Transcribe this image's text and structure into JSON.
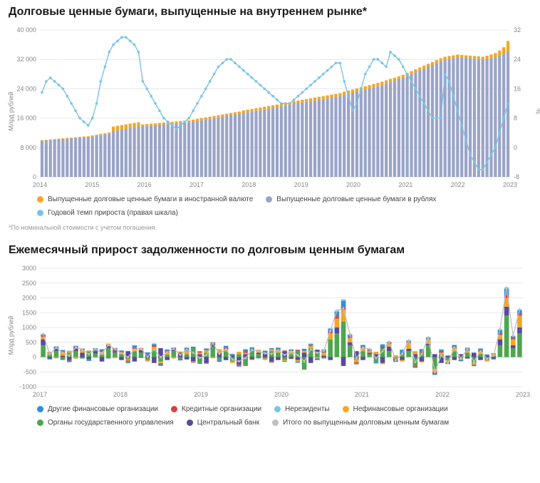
{
  "chart1": {
    "title": "Долговые ценные бумаги, выпущенные на внутреннем рынке*",
    "ylabel_left": "Млрд рублей",
    "ylabel_right": "%",
    "footnote": "*По номинальной стоимости с учетом погашения.",
    "y1_ticks": [
      0,
      8000,
      16000,
      24000,
      32000,
      40000
    ],
    "y2_ticks": [
      -8,
      0,
      8,
      16,
      24,
      32
    ],
    "y1_lim": [
      0,
      40000
    ],
    "y2_lim": [
      -8,
      32
    ],
    "x_years": [
      "2014",
      "2015",
      "2016",
      "2017",
      "2018",
      "2019",
      "2020",
      "2021",
      "2022",
      "2023"
    ],
    "colors": {
      "rub": "#9aa4c8",
      "fx": "#f5a623",
      "line": "#7bc3e6",
      "grid": "#e8e8e8",
      "bg": "#ffffff"
    },
    "legend": [
      {
        "label": "Выпущенные долговые ценные бумаги в иностранной валюте",
        "color": "#f5a623"
      },
      {
        "label": "Выпущенные долговые ценные бумаги в рублях",
        "color": "#9aa4c8"
      },
      {
        "label": "Годовой темп прироста (правая шкала)",
        "color": "#7bc3e6"
      }
    ],
    "bars_rub": [
      9800,
      9900,
      10000,
      10100,
      10200,
      10300,
      10400,
      10500,
      10600,
      10700,
      10800,
      10900,
      11000,
      11200,
      11400,
      11600,
      11800,
      12500,
      12700,
      12900,
      13100,
      13300,
      13500,
      13700,
      13800,
      13900,
      14000,
      14100,
      14200,
      14300,
      14400,
      14500,
      14600,
      14700,
      14800,
      14900,
      15000,
      15200,
      15400,
      15600,
      15800,
      16000,
      16200,
      16400,
      16600,
      16800,
      17000,
      17200,
      17400,
      17600,
      17800,
      18000,
      18200,
      18400,
      18600,
      18800,
      19000,
      19200,
      19400,
      19600,
      19800,
      20000,
      20200,
      20400,
      20600,
      20800,
      21000,
      21200,
      21400,
      21600,
      21800,
      22000,
      22300,
      22600,
      22900,
      23200,
      23500,
      23800,
      24100,
      24400,
      24700,
      25000,
      25400,
      25800,
      26200,
      26600,
      27000,
      27500,
      28000,
      28500,
      29000,
      29500,
      30000,
      30500,
      31000,
      31500,
      32000,
      32200,
      32400,
      32600,
      32500,
      32400,
      32300,
      32200,
      32100,
      32000,
      32100,
      32300,
      32500,
      33000,
      33500,
      34000
    ],
    "bars_fx": [
      200,
      200,
      200,
      200,
      200,
      200,
      200,
      200,
      200,
      200,
      200,
      200,
      300,
      300,
      300,
      300,
      300,
      1200,
      1200,
      1200,
      1200,
      1200,
      1200,
      1200,
      500,
      500,
      500,
      500,
      500,
      500,
      500,
      500,
      500,
      500,
      500,
      500,
      600,
      600,
      600,
      600,
      600,
      600,
      600,
      600,
      600,
      600,
      600,
      600,
      700,
      700,
      700,
      700,
      700,
      700,
      700,
      700,
      700,
      700,
      700,
      700,
      800,
      800,
      800,
      800,
      800,
      800,
      800,
      800,
      800,
      800,
      800,
      800,
      900,
      900,
      900,
      900,
      900,
      900,
      900,
      900,
      900,
      900,
      900,
      900,
      800,
      800,
      800,
      800,
      800,
      800,
      800,
      800,
      800,
      800,
      800,
      800,
      700,
      700,
      700,
      700,
      700,
      700,
      700,
      700,
      700,
      700,
      900,
      1000,
      1200,
      1400,
      1800,
      3000
    ],
    "line_growth": [
      15,
      18,
      19,
      18,
      17,
      16,
      14,
      12,
      10,
      8,
      7,
      6,
      8,
      12,
      18,
      22,
      26,
      28,
      29,
      30,
      30,
      29,
      28,
      26,
      18,
      16,
      14,
      12,
      10,
      8,
      7,
      6,
      5,
      6,
      7,
      8,
      10,
      12,
      14,
      16,
      18,
      20,
      22,
      23,
      24,
      24,
      23,
      22,
      21,
      20,
      19,
      18,
      17,
      16,
      15,
      14,
      13,
      12,
      12,
      12,
      13,
      14,
      15,
      16,
      17,
      18,
      19,
      20,
      21,
      22,
      23,
      23,
      18,
      14,
      10,
      12,
      16,
      20,
      22,
      24,
      24,
      23,
      22,
      26,
      25,
      24,
      22,
      20,
      18,
      16,
      14,
      12,
      10,
      8,
      8,
      8,
      20,
      18,
      14,
      10,
      6,
      2,
      -2,
      -4,
      -6,
      -6,
      -4,
      -2,
      0,
      4,
      8,
      12
    ]
  },
  "chart2": {
    "title": "Ежемесячный прирост задолженности по долговым ценным бумагам",
    "ylabel_left": "Млрд рублей",
    "y_ticks": [
      -1000,
      -500,
      0,
      500,
      1000,
      1500,
      2000,
      2500,
      3000
    ],
    "y_lim": [
      -1000,
      3000
    ],
    "x_years": [
      "2017",
      "2018",
      "2019",
      "2020",
      "2021",
      "2022",
      "2023"
    ],
    "colors": {
      "other_fin": "#2e8fd8",
      "credit": "#d94141",
      "nonres": "#7bc3e6",
      "nonfin": "#f5a623",
      "gov": "#4ea64e",
      "cb": "#5a4a9c",
      "total_line": "#bfbfbf",
      "grid": "#e8e8e8"
    },
    "legend": [
      {
        "label": "Другие финансовые организации",
        "color": "#2e8fd8"
      },
      {
        "label": "Кредитные организации",
        "color": "#d94141"
      },
      {
        "label": "Нерезиденты",
        "color": "#7bc3e6"
      },
      {
        "label": "Нефинансовые организации",
        "color": "#f5a623"
      },
      {
        "label": "Органы государственного управления",
        "color": "#4ea64e"
      },
      {
        "label": "Центральный банк",
        "color": "#5a4a9c"
      },
      {
        "label": "Итого по выпущенным долговым ценным бумагам",
        "color": "#bfbfbf"
      }
    ],
    "series": {
      "gov": [
        400,
        100,
        200,
        -100,
        150,
        200,
        -50,
        180,
        120,
        80,
        300,
        150,
        100,
        -80,
        200,
        150,
        -100,
        250,
        -150,
        80,
        200,
        -50,
        100,
        300,
        -200,
        150,
        350,
        -100,
        200,
        -150,
        100,
        -300,
        250,
        100,
        -50,
        200,
        150,
        -100,
        100,
        200,
        -400,
        300,
        150,
        -50,
        600,
        800,
        1200,
        400,
        -100,
        200,
        100,
        -150,
        300,
        200,
        -50,
        100,
        200,
        -300,
        150,
        400,
        -400,
        100,
        -100,
        200,
        -50,
        150,
        -200,
        100,
        -100,
        50,
        400,
        1400,
        300,
        800
      ],
      "cb": [
        200,
        -50,
        100,
        50,
        -100,
        80,
        150,
        -80,
        60,
        -150,
        100,
        50,
        -100,
        200,
        -150,
        80,
        100,
        -200,
        300,
        -100,
        50,
        150,
        -80,
        -150,
        100,
        -200,
        80,
        150,
        -100,
        50,
        -250,
        100,
        -80,
        50,
        100,
        -150,
        -100,
        200,
        -50,
        -100,
        150,
        -200,
        100,
        50,
        -100,
        200,
        -300,
        100,
        200,
        -100,
        50,
        100,
        -200,
        150,
        -50,
        -100,
        80,
        100,
        -150,
        50,
        100,
        -200,
        50,
        -100,
        100,
        -50,
        150,
        -100,
        50,
        -50,
        200,
        300,
        100,
        200
      ],
      "nonfin": [
        80,
        50,
        -30,
        100,
        60,
        -50,
        80,
        40,
        -20,
        100,
        50,
        -30,
        60,
        -40,
        80,
        50,
        -30,
        100,
        -60,
        80,
        -50,
        40,
        100,
        -30,
        50,
        80,
        -40,
        100,
        60,
        -50,
        80,
        40,
        -20,
        100,
        -50,
        60,
        80,
        -30,
        100,
        -50,
        60,
        80,
        -40,
        100,
        200,
        300,
        400,
        150,
        -80,
        100,
        50,
        80,
        -40,
        100,
        60,
        -50,
        200,
        100,
        -30,
        150,
        -100,
        50,
        -80,
        100,
        -40,
        60,
        -50,
        80,
        -30,
        50,
        150,
        300,
        200,
        400
      ],
      "credit": [
        30,
        20,
        -10,
        40,
        -20,
        30,
        20,
        -10,
        40,
        30,
        -20,
        50,
        20,
        -30,
        40,
        20,
        -10,
        50,
        -30,
        20,
        40,
        -20,
        30,
        -10,
        40,
        -20,
        30,
        -10,
        50,
        20,
        -30,
        40,
        20,
        -10,
        50,
        -30,
        30,
        20,
        -10,
        40,
        -20,
        30,
        -10,
        20,
        50,
        80,
        100,
        40,
        -30,
        40,
        20,
        -10,
        50,
        30,
        -20,
        40,
        20,
        -30,
        50,
        20,
        -40,
        30,
        -20,
        40,
        -10,
        30,
        -20,
        40,
        -10,
        20,
        60,
        100,
        40,
        80
      ],
      "other_fin": [
        50,
        -30,
        60,
        40,
        -50,
        70,
        30,
        -40,
        80,
        50,
        -30,
        60,
        40,
        -50,
        70,
        -30,
        60,
        40,
        -50,
        70,
        30,
        -40,
        80,
        50,
        -30,
        60,
        40,
        -50,
        70,
        30,
        -40,
        80,
        50,
        -30,
        60,
        40,
        50,
        -30,
        60,
        -40,
        70,
        30,
        -50,
        80,
        100,
        150,
        200,
        60,
        -30,
        60,
        40,
        -50,
        70,
        30,
        -40,
        100,
        50,
        -30,
        60,
        40,
        -50,
        70,
        -30,
        60,
        -40,
        70,
        -30,
        60,
        40,
        -30,
        100,
        200,
        60,
        100
      ],
      "nonres": [
        20,
        10,
        -5,
        15,
        10,
        -5,
        20,
        10,
        -5,
        15,
        10,
        -5,
        10,
        -5,
        15,
        10,
        -5,
        20,
        -10,
        15,
        10,
        -5,
        20,
        -10,
        15,
        -5,
        10,
        20,
        -10,
        15,
        -5,
        10,
        20,
        -10,
        15,
        -5,
        20,
        10,
        -5,
        15,
        -10,
        20,
        -5,
        15,
        30,
        40,
        50,
        20,
        -10,
        20,
        15,
        -5,
        20,
        10,
        -5,
        20,
        15,
        -10,
        20,
        10,
        -20,
        15,
        -10,
        20,
        -5,
        15,
        -10,
        20,
        -5,
        10,
        30,
        50,
        20,
        30
      ]
    }
  }
}
